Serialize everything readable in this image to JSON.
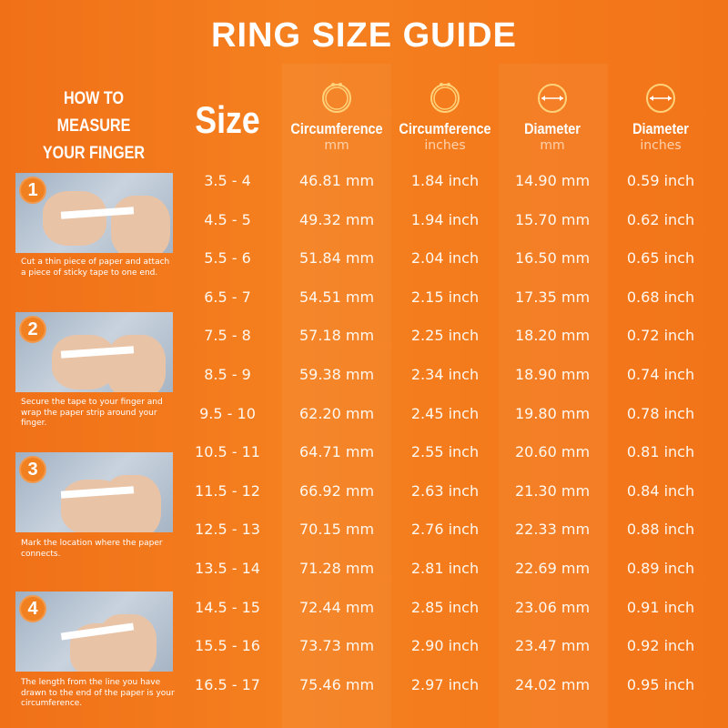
{
  "title": "RING SIZE GUIDE",
  "how_to": {
    "heading_line1": "HOW TO MEASURE",
    "heading_line2": "YOUR FINGER SIZE",
    "steps": [
      {
        "number": "1",
        "text": "Cut a thin piece of paper and attach a piece of sticky tape to one end."
      },
      {
        "number": "2",
        "text": "Secure the tape to your finger and wrap the paper strip around your finger."
      },
      {
        "number": "3",
        "text": "Mark the location where the paper connects."
      },
      {
        "number": "4",
        "text": "The length from the line you have drawn to the end of the paper is your circumference."
      }
    ]
  },
  "table": {
    "headers": [
      {
        "label": "Size",
        "unit": ""
      },
      {
        "label": "Circumference",
        "unit": "mm",
        "icon": "ring-icon"
      },
      {
        "label": "Circumference",
        "unit": "inches",
        "icon": "ring-icon"
      },
      {
        "label": "Diameter",
        "unit": "mm",
        "icon": "diameter-icon"
      },
      {
        "label": "Diameter",
        "unit": "inches",
        "icon": "diameter-icon"
      }
    ],
    "rows": [
      [
        "3.5 - 4",
        "46.81 mm",
        "1.84 inch",
        "14.90 mm",
        "0.59 inch"
      ],
      [
        "4.5 - 5",
        "49.32 mm",
        "1.94 inch",
        "15.70 mm",
        "0.62 inch"
      ],
      [
        "5.5 - 6",
        "51.84 mm",
        "2.04 inch",
        "16.50 mm",
        "0.65 inch"
      ],
      [
        "6.5 - 7",
        "54.51 mm",
        "2.15 inch",
        "17.35 mm",
        "0.68 inch"
      ],
      [
        "7.5 - 8",
        "57.18 mm",
        "2.25 inch",
        "18.20 mm",
        "0.72 inch"
      ],
      [
        "8.5 - 9",
        "59.38 mm",
        "2.34 inch",
        "18.90 mm",
        "0.74 inch"
      ],
      [
        "9.5 - 10",
        "62.20 mm",
        "2.45 inch",
        "19.80 mm",
        "0.78 inch"
      ],
      [
        "10.5 - 11",
        "64.71 mm",
        "2.55 inch",
        "20.60 mm",
        "0.81 inch"
      ],
      [
        "11.5 - 12",
        "66.92 mm",
        "2.63 inch",
        "21.30 mm",
        "0.84 inch"
      ],
      [
        "12.5 - 13",
        "70.15 mm",
        "2.76 inch",
        "22.33 mm",
        "0.88 inch"
      ],
      [
        "13.5 - 14",
        "71.28 mm",
        "2.81 inch",
        "22.69 mm",
        "0.89 inch"
      ],
      [
        "14.5 - 15",
        "72.44 mm",
        "2.85 inch",
        "23.06 mm",
        "0.91 inch"
      ],
      [
        "15.5 - 16",
        "73.73 mm",
        "2.90 inch",
        "23.47 mm",
        "0.92 inch"
      ],
      [
        "16.5 - 17",
        "75.46 mm",
        "2.97 inch",
        "24.02 mm",
        "0.95 inch"
      ]
    ]
  },
  "colors": {
    "background": "#f3761a",
    "unit_text": "#ffd2ad",
    "icon_stroke": "#ffd27a"
  }
}
